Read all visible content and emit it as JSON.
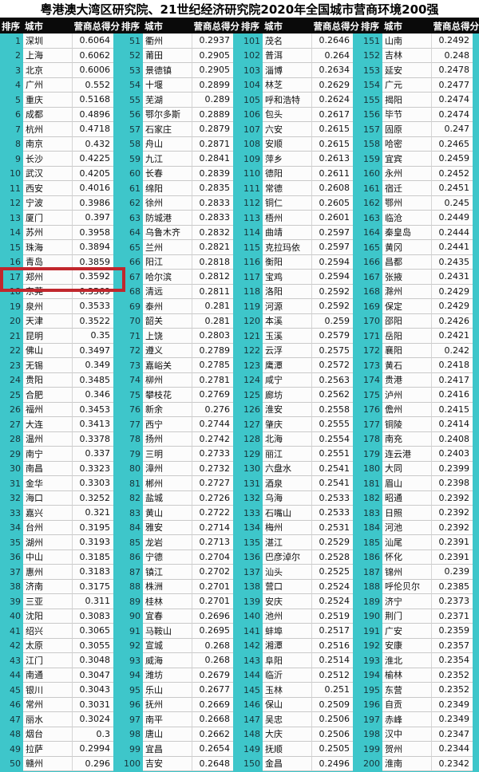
{
  "title": "粤港澳大湾区研究院、21世纪经济研究院2020年全国城市营商环境200强",
  "columns": {
    "rank": "排序",
    "city": "城市",
    "score": "营商总得分"
  },
  "highlight_rank": 17,
  "colors": {
    "background_teal": "#3ec6ca",
    "header_bg": "#0a0a0a",
    "header_text": "#ffffff",
    "cell_bg": "#fcfcfc",
    "highlight_red": "#c1272d"
  },
  "groups": [
    [
      {
        "rank": 1,
        "city": "深圳",
        "score": "0.6064"
      },
      {
        "rank": 2,
        "city": "上海",
        "score": "0.6062"
      },
      {
        "rank": 3,
        "city": "北京",
        "score": "0.6006"
      },
      {
        "rank": 4,
        "city": "广州",
        "score": "0.552"
      },
      {
        "rank": 5,
        "city": "重庆",
        "score": "0.5168"
      },
      {
        "rank": 6,
        "city": "成都",
        "score": "0.4896"
      },
      {
        "rank": 7,
        "city": "杭州",
        "score": "0.4718"
      },
      {
        "rank": 8,
        "city": "南京",
        "score": "0.432"
      },
      {
        "rank": 9,
        "city": "长沙",
        "score": "0.4225"
      },
      {
        "rank": 10,
        "city": "武汉",
        "score": "0.4205"
      },
      {
        "rank": 11,
        "city": "西安",
        "score": "0.4016"
      },
      {
        "rank": 12,
        "city": "宁波",
        "score": "0.3986"
      },
      {
        "rank": 13,
        "city": "厦门",
        "score": "0.397"
      },
      {
        "rank": 14,
        "city": "苏州",
        "score": "0.3958"
      },
      {
        "rank": 15,
        "city": "珠海",
        "score": "0.3894"
      },
      {
        "rank": 16,
        "city": "青岛",
        "score": "0.3859"
      },
      {
        "rank": 17,
        "city": "郑州",
        "score": "0.3592"
      },
      {
        "rank": 18,
        "city": "东莞",
        "score": "0.3569"
      },
      {
        "rank": 19,
        "city": "泉州",
        "score": "0.3533"
      },
      {
        "rank": 20,
        "city": "天津",
        "score": "0.3522"
      },
      {
        "rank": 21,
        "city": "昆明",
        "score": "0.35"
      },
      {
        "rank": 22,
        "city": "佛山",
        "score": "0.3497"
      },
      {
        "rank": 23,
        "city": "无锡",
        "score": "0.349"
      },
      {
        "rank": 24,
        "city": "贵阳",
        "score": "0.3485"
      },
      {
        "rank": 25,
        "city": "合肥",
        "score": "0.346"
      },
      {
        "rank": 26,
        "city": "福州",
        "score": "0.3453"
      },
      {
        "rank": 27,
        "city": "大连",
        "score": "0.3413"
      },
      {
        "rank": 28,
        "city": "温州",
        "score": "0.3378"
      },
      {
        "rank": 29,
        "city": "南宁",
        "score": "0.337"
      },
      {
        "rank": 30,
        "city": "南昌",
        "score": "0.3323"
      },
      {
        "rank": 31,
        "city": "金华",
        "score": "0.3303"
      },
      {
        "rank": 32,
        "city": "海口",
        "score": "0.3252"
      },
      {
        "rank": 33,
        "city": "嘉兴",
        "score": "0.321"
      },
      {
        "rank": 34,
        "city": "台州",
        "score": "0.3195"
      },
      {
        "rank": 35,
        "city": "湖州",
        "score": "0.3193"
      },
      {
        "rank": 36,
        "city": "中山",
        "score": "0.3185"
      },
      {
        "rank": 37,
        "city": "惠州",
        "score": "0.3183"
      },
      {
        "rank": 38,
        "city": "济南",
        "score": "0.3175"
      },
      {
        "rank": 39,
        "city": "三亚",
        "score": "0.311"
      },
      {
        "rank": 40,
        "city": "沈阳",
        "score": "0.3083"
      },
      {
        "rank": 41,
        "city": "绍兴",
        "score": "0.3065"
      },
      {
        "rank": 42,
        "city": "太原",
        "score": "0.3055"
      },
      {
        "rank": 43,
        "city": "江门",
        "score": "0.3048"
      },
      {
        "rank": 44,
        "city": "南通",
        "score": "0.3047"
      },
      {
        "rank": 45,
        "city": "银川",
        "score": "0.3043"
      },
      {
        "rank": 46,
        "city": "常州",
        "score": "0.3031"
      },
      {
        "rank": 47,
        "city": "丽水",
        "score": "0.3024"
      },
      {
        "rank": 48,
        "city": "烟台",
        "score": "0.3"
      },
      {
        "rank": 49,
        "city": "拉萨",
        "score": "0.2994"
      },
      {
        "rank": 50,
        "city": "赣州",
        "score": "0.296"
      }
    ],
    [
      {
        "rank": 51,
        "city": "衢州",
        "score": "0.2937"
      },
      {
        "rank": 52,
        "city": "莆田",
        "score": "0.2905"
      },
      {
        "rank": 53,
        "city": "景德镇",
        "score": "0.2905"
      },
      {
        "rank": 54,
        "city": "十堰",
        "score": "0.2899"
      },
      {
        "rank": 55,
        "city": "芜湖",
        "score": "0.289"
      },
      {
        "rank": 56,
        "city": "鄂尔多斯",
        "score": "0.2889"
      },
      {
        "rank": 57,
        "city": "石家庄",
        "score": "0.2879"
      },
      {
        "rank": 58,
        "city": "舟山",
        "score": "0.2871"
      },
      {
        "rank": 59,
        "city": "九江",
        "score": "0.2841"
      },
      {
        "rank": 60,
        "city": "长春",
        "score": "0.2839"
      },
      {
        "rank": 61,
        "city": "绵阳",
        "score": "0.2835"
      },
      {
        "rank": 62,
        "city": "徐州",
        "score": "0.2833"
      },
      {
        "rank": 63,
        "city": "防城港",
        "score": "0.2833"
      },
      {
        "rank": 64,
        "city": "乌鲁木齐",
        "score": "0.2832"
      },
      {
        "rank": 65,
        "city": "兰州",
        "score": "0.2821"
      },
      {
        "rank": 66,
        "city": "阳江",
        "score": "0.2818"
      },
      {
        "rank": 67,
        "city": "哈尔滨",
        "score": "0.2812"
      },
      {
        "rank": 68,
        "city": "清远",
        "score": "0.2811"
      },
      {
        "rank": 69,
        "city": "泰州",
        "score": "0.281"
      },
      {
        "rank": 70,
        "city": "韶关",
        "score": "0.281"
      },
      {
        "rank": 71,
        "city": "上饶",
        "score": "0.2803"
      },
      {
        "rank": 72,
        "city": "遵义",
        "score": "0.2789"
      },
      {
        "rank": 73,
        "city": "嘉峪关",
        "score": "0.2785"
      },
      {
        "rank": 74,
        "city": "柳州",
        "score": "0.2781"
      },
      {
        "rank": 75,
        "city": "攀枝花",
        "score": "0.2769"
      },
      {
        "rank": 76,
        "city": "新余",
        "score": "0.276"
      },
      {
        "rank": 77,
        "city": "西宁",
        "score": "0.2744"
      },
      {
        "rank": 78,
        "city": "扬州",
        "score": "0.2742"
      },
      {
        "rank": 79,
        "city": "三明",
        "score": "0.2733"
      },
      {
        "rank": 80,
        "city": "漳州",
        "score": "0.2732"
      },
      {
        "rank": 81,
        "city": "郴州",
        "score": "0.2727"
      },
      {
        "rank": 82,
        "city": "盐城",
        "score": "0.2726"
      },
      {
        "rank": 83,
        "city": "黄山",
        "score": "0.2722"
      },
      {
        "rank": 84,
        "city": "雅安",
        "score": "0.2714"
      },
      {
        "rank": 85,
        "city": "龙岩",
        "score": "0.2713"
      },
      {
        "rank": 86,
        "city": "宁德",
        "score": "0.2704"
      },
      {
        "rank": 87,
        "city": "镇江",
        "score": "0.2702"
      },
      {
        "rank": 88,
        "city": "株洲",
        "score": "0.2701"
      },
      {
        "rank": 89,
        "city": "桂林",
        "score": "0.2701"
      },
      {
        "rank": 90,
        "city": "宜春",
        "score": "0.2696"
      },
      {
        "rank": 91,
        "city": "马鞍山",
        "score": "0.2695"
      },
      {
        "rank": 92,
        "city": "宣城",
        "score": "0.268"
      },
      {
        "rank": 93,
        "city": "威海",
        "score": "0.268"
      },
      {
        "rank": 94,
        "city": "潍坊",
        "score": "0.2679"
      },
      {
        "rank": 95,
        "city": "乐山",
        "score": "0.2677"
      },
      {
        "rank": 96,
        "city": "抚州",
        "score": "0.2669"
      },
      {
        "rank": 97,
        "city": "南平",
        "score": "0.2668"
      },
      {
        "rank": 98,
        "city": "唐山",
        "score": "0.2662"
      },
      {
        "rank": 99,
        "city": "宜昌",
        "score": "0.2654"
      },
      {
        "rank": 100,
        "city": "吉安",
        "score": "0.2648"
      }
    ],
    [
      {
        "rank": 101,
        "city": "茂名",
        "score": "0.2646"
      },
      {
        "rank": 102,
        "city": "普洱",
        "score": "0.264"
      },
      {
        "rank": 103,
        "city": "淄博",
        "score": "0.2634"
      },
      {
        "rank": 104,
        "city": "林芝",
        "score": "0.2629"
      },
      {
        "rank": 105,
        "city": "呼和浩特",
        "score": "0.2624"
      },
      {
        "rank": 106,
        "city": "包头",
        "score": "0.2617"
      },
      {
        "rank": 107,
        "city": "六安",
        "score": "0.2615"
      },
      {
        "rank": 108,
        "city": "安顺",
        "score": "0.2615"
      },
      {
        "rank": 109,
        "city": "萍乡",
        "score": "0.2613"
      },
      {
        "rank": 110,
        "city": "德阳",
        "score": "0.2611"
      },
      {
        "rank": 111,
        "city": "常德",
        "score": "0.2608"
      },
      {
        "rank": 112,
        "city": "铜仁",
        "score": "0.2605"
      },
      {
        "rank": 113,
        "city": "梧州",
        "score": "0.2601"
      },
      {
        "rank": 114,
        "city": "曲靖",
        "score": "0.2597"
      },
      {
        "rank": 115,
        "city": "克拉玛依",
        "score": "0.2597"
      },
      {
        "rank": 116,
        "city": "衡阳",
        "score": "0.2594"
      },
      {
        "rank": 117,
        "city": "宝鸡",
        "score": "0.2594"
      },
      {
        "rank": 118,
        "city": "洛阳",
        "score": "0.2592"
      },
      {
        "rank": 119,
        "city": "河源",
        "score": "0.2592"
      },
      {
        "rank": 120,
        "city": "本溪",
        "score": "0.259"
      },
      {
        "rank": 121,
        "city": "玉溪",
        "score": "0.2579"
      },
      {
        "rank": 122,
        "city": "云浮",
        "score": "0.2575"
      },
      {
        "rank": 123,
        "city": "鹰潭",
        "score": "0.2572"
      },
      {
        "rank": 124,
        "city": "咸宁",
        "score": "0.2563"
      },
      {
        "rank": 125,
        "city": "廊坊",
        "score": "0.2562"
      },
      {
        "rank": 126,
        "city": "淮安",
        "score": "0.2558"
      },
      {
        "rank": 127,
        "city": "肇庆",
        "score": "0.2555"
      },
      {
        "rank": 128,
        "city": "北海",
        "score": "0.2554"
      },
      {
        "rank": 129,
        "city": "丽江",
        "score": "0.2551"
      },
      {
        "rank": 130,
        "city": "六盘水",
        "score": "0.2541"
      },
      {
        "rank": 131,
        "city": "酒泉",
        "score": "0.2541"
      },
      {
        "rank": 132,
        "city": "乌海",
        "score": "0.2533"
      },
      {
        "rank": 133,
        "city": "石嘴山",
        "score": "0.2533"
      },
      {
        "rank": 134,
        "city": "梅州",
        "score": "0.2531"
      },
      {
        "rank": 135,
        "city": "湛江",
        "score": "0.2529"
      },
      {
        "rank": 136,
        "city": "巴彦淖尔",
        "score": "0.2528"
      },
      {
        "rank": 137,
        "city": "汕头",
        "score": "0.2525"
      },
      {
        "rank": 138,
        "city": "营口",
        "score": "0.2524"
      },
      {
        "rank": 139,
        "city": "安庆",
        "score": "0.2524"
      },
      {
        "rank": 140,
        "city": "池州",
        "score": "0.2519"
      },
      {
        "rank": 141,
        "city": "蚌埠",
        "score": "0.2517"
      },
      {
        "rank": 142,
        "city": "湘潭",
        "score": "0.2516"
      },
      {
        "rank": 143,
        "city": "阜阳",
        "score": "0.2514"
      },
      {
        "rank": 144,
        "city": "临沂",
        "score": "0.2512"
      },
      {
        "rank": 145,
        "city": "玉林",
        "score": "0.251"
      },
      {
        "rank": 146,
        "city": "保山",
        "score": "0.2509"
      },
      {
        "rank": 147,
        "city": "吴忠",
        "score": "0.2506"
      },
      {
        "rank": 148,
        "city": "大庆",
        "score": "0.2506"
      },
      {
        "rank": 149,
        "city": "抚顺",
        "score": "0.2505"
      },
      {
        "rank": 150,
        "city": "金昌",
        "score": "0.2496"
      }
    ],
    [
      {
        "rank": 151,
        "city": "山南",
        "score": "0.2492"
      },
      {
        "rank": 152,
        "city": "吉林",
        "score": "0.248"
      },
      {
        "rank": 153,
        "city": "延安",
        "score": "0.2478"
      },
      {
        "rank": 154,
        "city": "广元",
        "score": "0.2477"
      },
      {
        "rank": 155,
        "city": "揭阳",
        "score": "0.2474"
      },
      {
        "rank": 156,
        "city": "毕节",
        "score": "0.2474"
      },
      {
        "rank": 157,
        "city": "固原",
        "score": "0.247"
      },
      {
        "rank": 158,
        "city": "哈密",
        "score": "0.2465"
      },
      {
        "rank": 159,
        "city": "宜宾",
        "score": "0.2459"
      },
      {
        "rank": 160,
        "city": "永州",
        "score": "0.2452"
      },
      {
        "rank": 161,
        "city": "宿迁",
        "score": "0.2451"
      },
      {
        "rank": 162,
        "city": "鄂州",
        "score": "0.245"
      },
      {
        "rank": 163,
        "city": "临沧",
        "score": "0.2449"
      },
      {
        "rank": 164,
        "city": "秦皇岛",
        "score": "0.2444"
      },
      {
        "rank": 165,
        "city": "黄冈",
        "score": "0.2441"
      },
      {
        "rank": 166,
        "city": "昌都",
        "score": "0.2435"
      },
      {
        "rank": 167,
        "city": "张掖",
        "score": "0.2431"
      },
      {
        "rank": 168,
        "city": "滁州",
        "score": "0.2429"
      },
      {
        "rank": 169,
        "city": "保定",
        "score": "0.2429"
      },
      {
        "rank": 170,
        "city": "邵阳",
        "score": "0.2426"
      },
      {
        "rank": 171,
        "city": "岳阳",
        "score": "0.2421"
      },
      {
        "rank": 172,
        "city": "襄阳",
        "score": "0.242"
      },
      {
        "rank": 173,
        "city": "黄石",
        "score": "0.2418"
      },
      {
        "rank": 174,
        "city": "贵港",
        "score": "0.2417"
      },
      {
        "rank": 175,
        "city": "泸州",
        "score": "0.2416"
      },
      {
        "rank": 176,
        "city": "儋州",
        "score": "0.2415"
      },
      {
        "rank": 177,
        "city": "铜陵",
        "score": "0.2414"
      },
      {
        "rank": 178,
        "city": "南充",
        "score": "0.2408"
      },
      {
        "rank": 179,
        "city": "连云港",
        "score": "0.2403"
      },
      {
        "rank": 180,
        "city": "大同",
        "score": "0.2399"
      },
      {
        "rank": 181,
        "city": "眉山",
        "score": "0.2398"
      },
      {
        "rank": 182,
        "city": "昭通",
        "score": "0.2392"
      },
      {
        "rank": 183,
        "city": "日照",
        "score": "0.2392"
      },
      {
        "rank": 184,
        "city": "河池",
        "score": "0.2392"
      },
      {
        "rank": 185,
        "city": "汕尾",
        "score": "0.2391"
      },
      {
        "rank": 186,
        "city": "怀化",
        "score": "0.2391"
      },
      {
        "rank": 187,
        "city": "锦州",
        "score": "0.239"
      },
      {
        "rank": 188,
        "city": "呼伦贝尔",
        "score": "0.2385"
      },
      {
        "rank": 189,
        "city": "济宁",
        "score": "0.2373"
      },
      {
        "rank": 190,
        "city": "荆门",
        "score": "0.2371"
      },
      {
        "rank": 191,
        "city": "广安",
        "score": "0.2359"
      },
      {
        "rank": 192,
        "city": "安康",
        "score": "0.2357"
      },
      {
        "rank": 193,
        "city": "淮北",
        "score": "0.2354"
      },
      {
        "rank": 194,
        "city": "榆林",
        "score": "0.2352"
      },
      {
        "rank": 195,
        "city": "东营",
        "score": "0.2352"
      },
      {
        "rank": 196,
        "city": "自贡",
        "score": "0.2349"
      },
      {
        "rank": 197,
        "city": "赤峰",
        "score": "0.2349"
      },
      {
        "rank": 198,
        "city": "汉中",
        "score": "0.2347"
      },
      {
        "rank": 199,
        "city": "贺州",
        "score": "0.2344"
      },
      {
        "rank": 200,
        "city": "淮南",
        "score": "0.2342"
      }
    ]
  ]
}
